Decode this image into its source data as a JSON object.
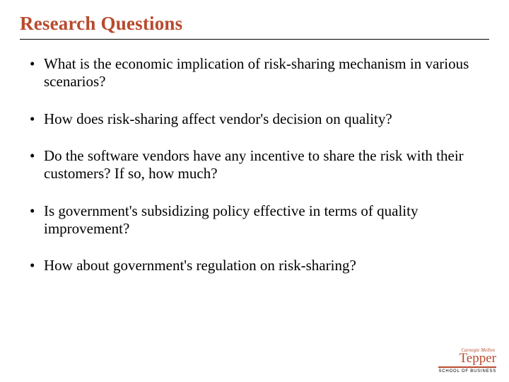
{
  "title": "Research Questions",
  "title_color": "#b84a2e",
  "title_fontsize": 27,
  "body_fontsize": 21,
  "body_color": "#000000",
  "background_color": "#ffffff",
  "bullets": [
    "What is the economic implication of risk-sharing mechanism in various scenarios?",
    "How does risk-sharing affect vendor's decision on quality?",
    "Do the software vendors have any incentive to share the risk with their customers? If so, how much?",
    "Is government's subsidizing policy effective in terms of quality improvement?",
    "How about government's regulation on risk-sharing?"
  ],
  "logo": {
    "institution": "Carnegie Mellon",
    "school_name": "Tepper",
    "subtitle": "SCHOOL OF BUSINESS",
    "accent_color": "#b84a2e"
  }
}
